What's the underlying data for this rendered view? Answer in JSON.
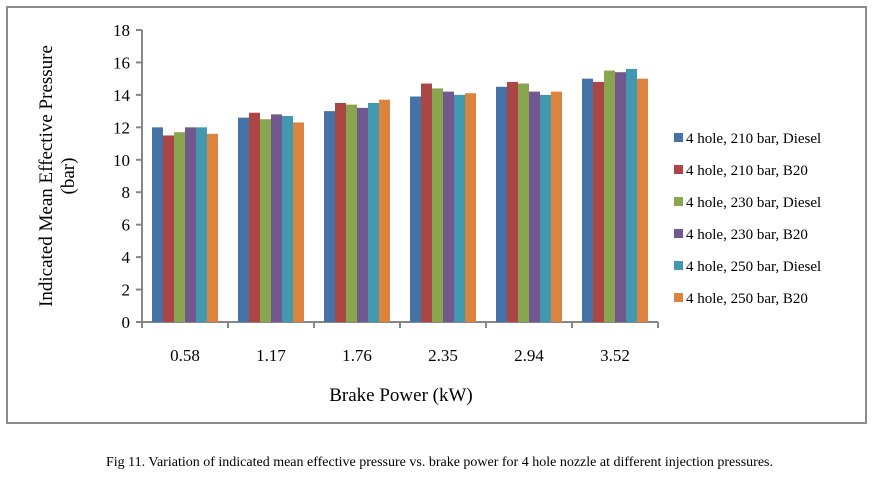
{
  "chart_data": {
    "type": "bar",
    "title": "",
    "xlabel": "Brake Power (kW)",
    "ylabel": "Indicated Mean Effective Pressure (bar)",
    "ylabel_lines": [
      "Indicated Mean Effective Pressure",
      "(bar)"
    ],
    "ylim": [
      0,
      18
    ],
    "yticks": [
      0,
      2,
      4,
      6,
      8,
      10,
      12,
      14,
      16,
      18
    ],
    "grid": false,
    "legend_position": "right",
    "categories": [
      "0.58",
      "1.17",
      "1.76",
      "2.35",
      "2.94",
      "3.52"
    ],
    "series": [
      {
        "name": "4 hole, 210 bar, Diesel",
        "color": "#4572a7",
        "values": [
          12.0,
          12.6,
          13.0,
          13.9,
          14.5,
          15.0
        ]
      },
      {
        "name": "4 hole, 210 bar, B20",
        "color": "#aa4643",
        "values": [
          11.5,
          12.9,
          13.5,
          14.7,
          14.8,
          14.8
        ]
      },
      {
        "name": "4 hole, 230 bar, Diesel",
        "color": "#89a54e",
        "values": [
          11.7,
          12.5,
          13.4,
          14.4,
          14.7,
          15.5
        ]
      },
      {
        "name": "4 hole, 230 bar, B20",
        "color": "#71588f",
        "values": [
          12.0,
          12.8,
          13.2,
          14.2,
          14.2,
          15.4
        ]
      },
      {
        "name": "4 hole, 250 bar, Diesel",
        "color": "#4198af",
        "values": [
          12.0,
          12.7,
          13.5,
          14.0,
          14.0,
          15.6
        ]
      },
      {
        "name": "4 hole, 250 bar, B20",
        "color": "#db843d",
        "values": [
          11.6,
          12.3,
          13.7,
          14.1,
          14.2,
          15.0
        ]
      }
    ]
  },
  "caption": "Fig 11. Variation of indicated mean effective pressure vs. brake power for 4 hole nozzle at different injection pressures."
}
